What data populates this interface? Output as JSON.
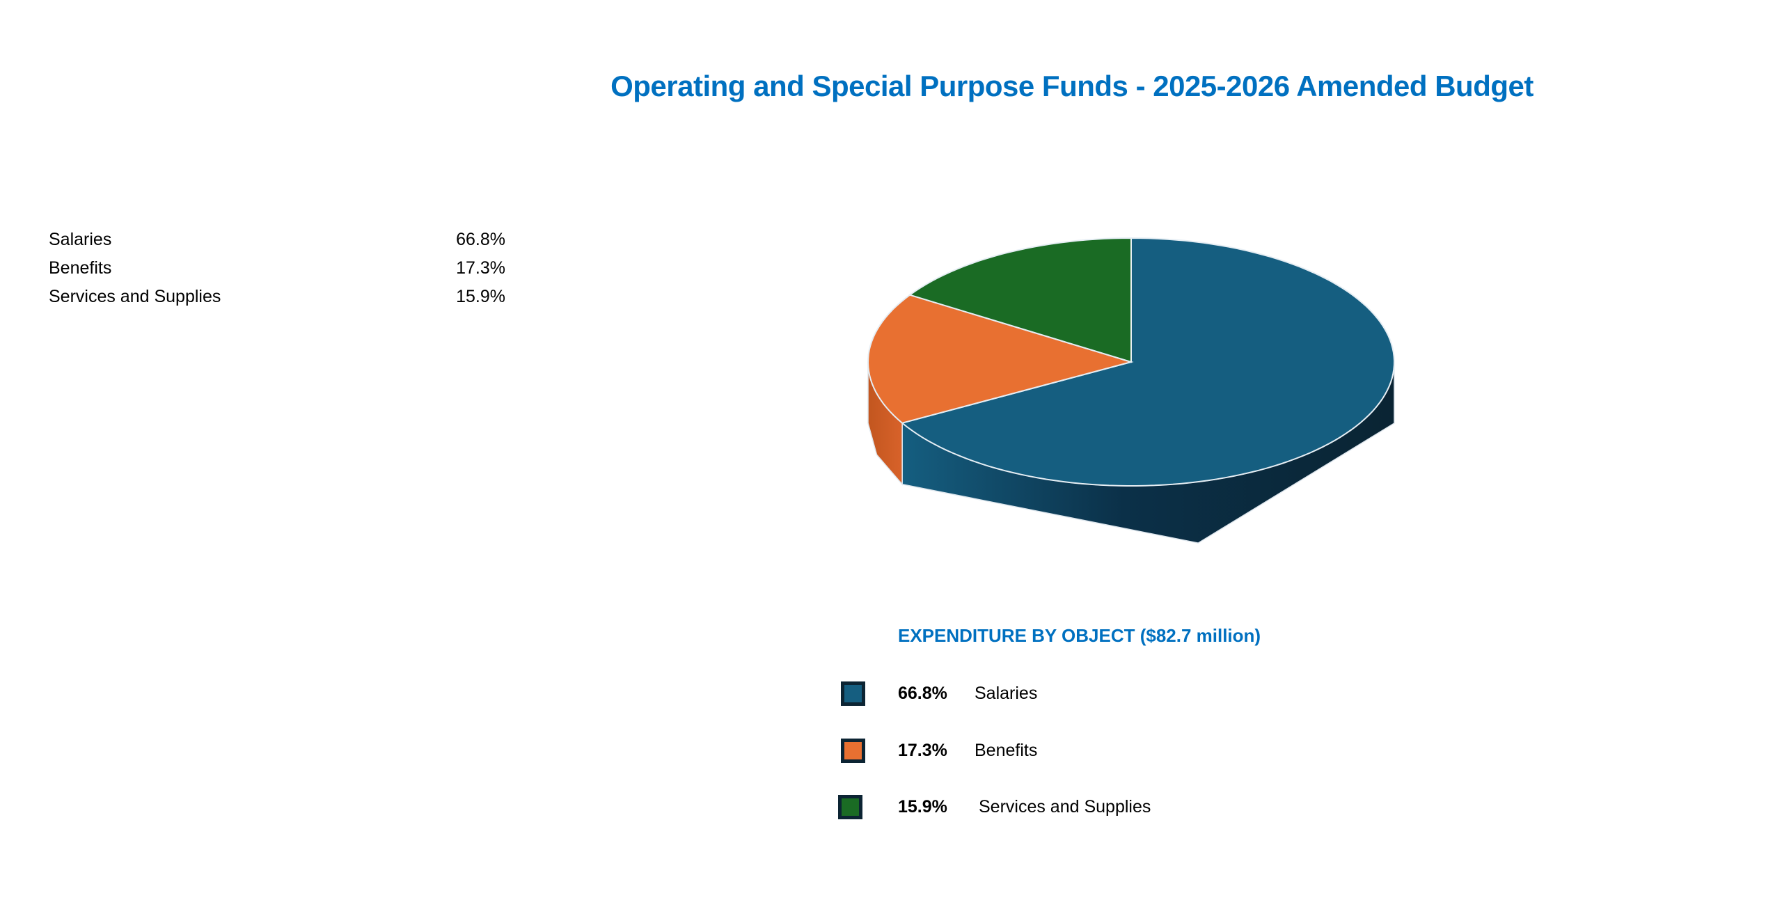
{
  "chart_data": {
    "type": "pie",
    "title": "Operating and Special Purpose Funds - 2025-2026 Amended Budget",
    "subtitle": "EXPENDITURE BY OBJECT ($82.7 million)",
    "style": "3d",
    "categories": [
      "Salaries",
      "Benefits",
      "Services and Supplies"
    ],
    "values": [
      66.8,
      17.3,
      15.9
    ],
    "value_labels": [
      "66.8%",
      "17.3%",
      "15.9%"
    ],
    "colors": [
      "#155e80",
      "#e87031",
      "#1a6b24"
    ],
    "legend": "bottom"
  },
  "table": {
    "rows": [
      {
        "label": "Salaries",
        "value": "66.8%"
      },
      {
        "label": "Benefits",
        "value": "17.3%"
      },
      {
        "label": "Services and Supplies",
        "value": "15.9%"
      }
    ]
  }
}
